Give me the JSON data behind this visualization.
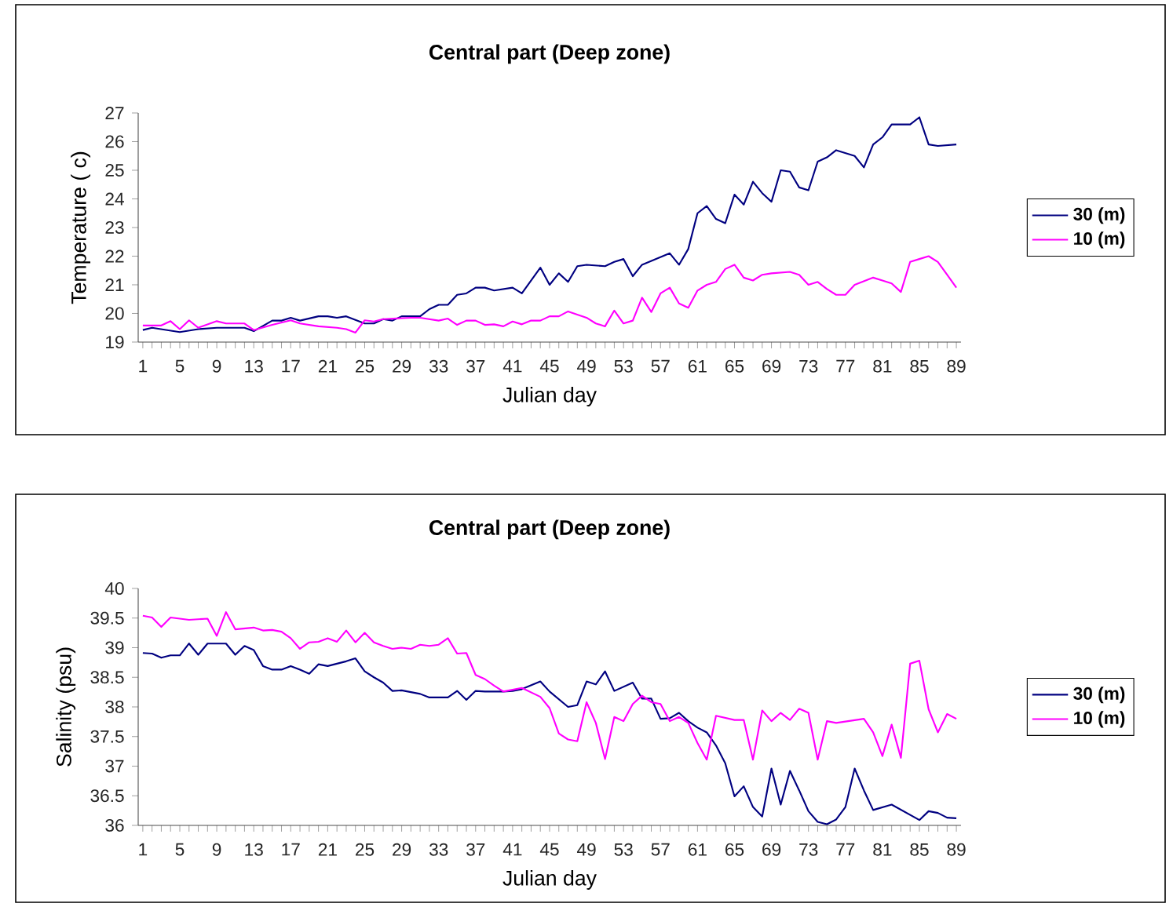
{
  "chart_data": [
    {
      "type": "line",
      "title": "Central part (Deep zone)",
      "xlabel": "Julian day",
      "ylabel": "Temperature ( c)",
      "xlim": [
        0.5,
        89.5
      ],
      "xticks": [
        1,
        5,
        9,
        13,
        17,
        21,
        25,
        29,
        33,
        37,
        41,
        45,
        49,
        53,
        57,
        61,
        65,
        69,
        73,
        77,
        81,
        85,
        89
      ],
      "ylim": [
        19,
        27
      ],
      "yticks": [
        19,
        20,
        21,
        22,
        23,
        24,
        25,
        26,
        27
      ],
      "legend": "right",
      "series": [
        {
          "name": "30 (m)",
          "color": "#000080",
          "x": [
            1,
            2,
            5,
            7,
            9,
            12,
            13,
            15,
            16,
            17,
            18,
            20,
            21,
            22,
            23,
            25,
            26,
            27,
            28,
            29,
            31,
            32,
            33,
            34,
            35,
            36,
            37,
            38,
            39,
            40,
            41,
            42,
            44,
            45,
            46,
            47,
            48,
            49,
            51,
            52,
            53,
            54,
            55,
            58,
            59,
            60,
            61,
            62,
            63,
            64,
            65,
            66,
            67,
            68,
            69,
            70,
            71,
            72,
            73,
            74,
            75,
            76,
            78,
            79,
            80,
            81,
            82,
            83,
            84,
            85,
            86,
            87,
            89
          ],
          "values": [
            19.42,
            19.5,
            19.35,
            19.45,
            19.5,
            19.5,
            19.38,
            19.75,
            19.75,
            19.85,
            19.75,
            19.9,
            19.9,
            19.85,
            19.9,
            19.65,
            19.65,
            19.8,
            19.75,
            19.9,
            19.9,
            20.15,
            20.3,
            20.3,
            20.65,
            20.7,
            20.9,
            20.9,
            20.8,
            20.85,
            20.9,
            20.7,
            21.6,
            21.0,
            21.4,
            21.1,
            21.65,
            21.7,
            21.65,
            21.8,
            21.9,
            21.3,
            21.7,
            22.1,
            21.7,
            22.25,
            23.5,
            23.75,
            23.3,
            23.15,
            24.15,
            23.8,
            24.6,
            24.2,
            23.9,
            25.0,
            24.95,
            24.4,
            24.3,
            25.3,
            25.45,
            25.7,
            25.5,
            25.1,
            25.9,
            26.15,
            26.6,
            26.6,
            26.6,
            26.85,
            25.9,
            25.85,
            25.9
          ]
        },
        {
          "name": "10 (m)",
          "color": "#ff00ff",
          "x": [
            1,
            3,
            4,
            5,
            6,
            7,
            9,
            10,
            12,
            13,
            15,
            17,
            18,
            20,
            22,
            23,
            24,
            25,
            26,
            27,
            30,
            31,
            33,
            34,
            35,
            36,
            37,
            38,
            39,
            40,
            41,
            42,
            43,
            44,
            45,
            46,
            47,
            49,
            50,
            51,
            52,
            53,
            54,
            55,
            56,
            57,
            58,
            59,
            60,
            61,
            62,
            63,
            64,
            65,
            66,
            67,
            68,
            69,
            71,
            72,
            73,
            74,
            75,
            76,
            77,
            78,
            80,
            81,
            82,
            83,
            84,
            85,
            86,
            87,
            88,
            89
          ],
          "values": [
            19.58,
            19.58,
            19.73,
            19.45,
            19.76,
            19.5,
            19.73,
            19.65,
            19.65,
            19.42,
            19.6,
            19.76,
            19.65,
            19.55,
            19.5,
            19.45,
            19.33,
            19.76,
            19.72,
            19.8,
            19.85,
            19.85,
            19.75,
            19.82,
            19.6,
            19.75,
            19.75,
            19.6,
            19.62,
            19.55,
            19.72,
            19.62,
            19.75,
            19.75,
            19.9,
            19.9,
            20.07,
            19.85,
            19.65,
            19.55,
            20.1,
            19.65,
            19.75,
            20.55,
            20.05,
            20.7,
            20.9,
            20.35,
            20.2,
            20.8,
            21.0,
            21.1,
            21.55,
            21.7,
            21.25,
            21.15,
            21.35,
            21.4,
            21.45,
            21.35,
            21.0,
            21.1,
            20.85,
            20.65,
            20.65,
            21.0,
            21.25,
            21.15,
            21.05,
            20.75,
            21.8,
            21.9,
            22.0,
            21.8,
            21.35,
            20.9
          ]
        }
      ]
    },
    {
      "type": "line",
      "title": "Central part (Deep zone)",
      "xlabel": "Julian day",
      "ylabel": "Salinity (psu)",
      "xlim": [
        0.5,
        89.5
      ],
      "xticks": [
        1,
        5,
        9,
        13,
        17,
        21,
        25,
        29,
        33,
        37,
        41,
        45,
        49,
        53,
        57,
        61,
        65,
        69,
        73,
        77,
        81,
        85,
        89
      ],
      "ylim": [
        36,
        40
      ],
      "yticks": [
        36,
        36.5,
        37,
        37.5,
        38,
        38.5,
        39,
        39.5,
        40
      ],
      "legend": "right",
      "series": [
        {
          "name": "30 (m)",
          "color": "#000080",
          "x": [
            1,
            2,
            3,
            4,
            5,
            6,
            7,
            8,
            9,
            10,
            11,
            12,
            13,
            14,
            15,
            16,
            17,
            18,
            19,
            20,
            21,
            22,
            23,
            24,
            25,
            26,
            27,
            28,
            29,
            30,
            31,
            32,
            33,
            34,
            35,
            36,
            37,
            38,
            39,
            40,
            41,
            42,
            44,
            45,
            47,
            48,
            49,
            50,
            51,
            52,
            54,
            55,
            56,
            57,
            58,
            59,
            60,
            61,
            62,
            63,
            64,
            65,
            66,
            67,
            68,
            69,
            70,
            71,
            72,
            73,
            74,
            75,
            76,
            77,
            78,
            79,
            80,
            82,
            85,
            86,
            87,
            88,
            89
          ],
          "values": [
            38.91,
            38.9,
            38.83,
            38.87,
            38.87,
            39.07,
            38.88,
            39.07,
            39.07,
            39.07,
            38.88,
            39.03,
            38.96,
            38.69,
            38.63,
            38.63,
            38.69,
            38.63,
            38.56,
            38.72,
            38.69,
            38.73,
            38.77,
            38.82,
            38.6,
            38.5,
            38.41,
            38.27,
            38.28,
            38.25,
            38.22,
            38.16,
            38.16,
            38.16,
            38.27,
            38.12,
            38.27,
            38.26,
            38.26,
            38.26,
            38.27,
            38.3,
            38.43,
            38.26,
            38.0,
            38.03,
            38.43,
            38.38,
            38.6,
            38.27,
            38.41,
            38.14,
            38.14,
            37.8,
            37.81,
            37.9,
            37.76,
            37.65,
            37.57,
            37.35,
            37.05,
            36.49,
            36.66,
            36.31,
            36.15,
            36.96,
            36.35,
            36.92,
            36.59,
            36.24,
            36.06,
            36.02,
            36.1,
            36.31,
            36.96,
            36.59,
            36.26,
            36.35,
            36.09,
            36.24,
            36.21,
            36.13,
            36.12
          ]
        },
        {
          "name": "10 (m)",
          "color": "#ff00ff",
          "x": [
            1,
            2,
            3,
            4,
            6,
            8,
            9,
            10,
            11,
            13,
            14,
            15,
            16,
            17,
            18,
            19,
            20,
            21,
            22,
            23,
            24,
            25,
            26,
            27,
            28,
            29,
            30,
            31,
            32,
            33,
            34,
            35,
            36,
            37,
            38,
            39,
            40,
            41,
            42,
            44,
            45,
            46,
            47,
            48,
            49,
            50,
            51,
            52,
            53,
            54,
            55,
            56,
            57,
            58,
            59,
            60,
            61,
            62,
            63,
            65,
            66,
            67,
            68,
            69,
            70,
            71,
            72,
            73,
            74,
            75,
            76,
            79,
            80,
            81,
            82,
            83,
            84,
            85,
            86,
            87,
            88,
            89
          ],
          "values": [
            39.54,
            39.51,
            39.35,
            39.51,
            39.47,
            39.49,
            39.2,
            39.6,
            39.31,
            39.34,
            39.29,
            39.3,
            39.27,
            39.16,
            38.98,
            39.09,
            39.1,
            39.16,
            39.1,
            39.29,
            39.09,
            39.25,
            39.09,
            39.03,
            38.98,
            39.0,
            38.98,
            39.05,
            39.03,
            39.05,
            39.16,
            38.9,
            38.91,
            38.54,
            38.47,
            38.36,
            38.26,
            38.29,
            38.32,
            38.17,
            37.98,
            37.55,
            37.45,
            37.42,
            38.08,
            37.73,
            37.12,
            37.83,
            37.76,
            38.05,
            38.19,
            38.08,
            38.05,
            37.76,
            37.83,
            37.73,
            37.39,
            37.11,
            37.85,
            37.78,
            37.78,
            37.11,
            37.94,
            37.76,
            37.9,
            37.78,
            37.97,
            37.9,
            37.11,
            37.76,
            37.73,
            37.8,
            37.57,
            37.17,
            37.7,
            37.14,
            38.73,
            38.78,
            37.96,
            37.57,
            37.88,
            37.8
          ]
        }
      ]
    }
  ]
}
